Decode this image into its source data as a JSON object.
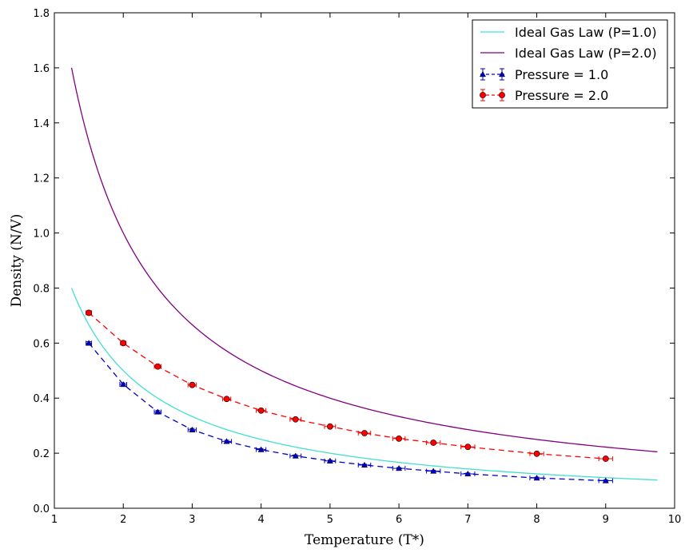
{
  "chart_data": {
    "type": "line",
    "title": "",
    "xlabel": "Temperature (T*)",
    "ylabel": "Density (N/V)",
    "xlim": [
      1,
      10
    ],
    "ylim": [
      0.0,
      1.8
    ],
    "xticks": [
      1,
      2,
      3,
      4,
      5,
      6,
      7,
      8,
      9,
      10
    ],
    "xtick_labels": [
      "1",
      "2",
      "3",
      "4",
      "5",
      "6",
      "7",
      "8",
      "9",
      "10"
    ],
    "yticks": [
      0.0,
      0.2,
      0.4,
      0.6,
      0.8,
      1.0,
      1.2,
      1.4,
      1.6,
      1.8
    ],
    "ytick_labels": [
      "0.0",
      "0.2",
      "0.4",
      "0.6",
      "0.8",
      "1.0",
      "1.2",
      "1.4",
      "1.6",
      "1.8"
    ],
    "grid": false,
    "legend_position": "top-right",
    "curves": [
      {
        "name": "Ideal Gas Law (P=1.0)",
        "color": "#40e0d0",
        "style": "solid",
        "formula": "P/T",
        "P": 1.0,
        "x_range": [
          1.25,
          9.75
        ]
      },
      {
        "name": "Ideal Gas Law (P=2.0)",
        "color": "#800080",
        "style": "solid",
        "formula": "P/T",
        "P": 2.0,
        "x_range": [
          1.25,
          9.75
        ]
      }
    ],
    "series": [
      {
        "name": "Pressure = 1.0",
        "color": "#0000cc",
        "style": "dashed",
        "marker": "triangle",
        "x": [
          1.5,
          2.0,
          2.5,
          3.0,
          3.5,
          4.0,
          4.5,
          5.0,
          5.5,
          6.0,
          6.5,
          7.0,
          8.0,
          9.0
        ],
        "y": [
          0.6,
          0.45,
          0.35,
          0.285,
          0.243,
          0.213,
          0.19,
          0.172,
          0.157,
          0.145,
          0.135,
          0.125,
          0.11,
          0.1
        ],
        "xerr": [
          0.04,
          0.05,
          0.05,
          0.06,
          0.07,
          0.07,
          0.08,
          0.08,
          0.09,
          0.09,
          0.1,
          0.1,
          0.1,
          0.1
        ],
        "yerr": [
          0.005,
          0.005,
          0.005,
          0.005,
          0.004,
          0.004,
          0.004,
          0.003,
          0.003,
          0.003,
          0.003,
          0.003,
          0.003,
          0.003
        ]
      },
      {
        "name": "Pressure = 2.0",
        "color": "#ff0000",
        "style": "dashed",
        "marker": "circle",
        "x": [
          1.5,
          2.0,
          2.5,
          3.0,
          3.5,
          4.0,
          4.5,
          5.0,
          5.5,
          6.0,
          6.5,
          7.0,
          8.0,
          9.0
        ],
        "y": [
          0.71,
          0.6,
          0.515,
          0.448,
          0.397,
          0.355,
          0.323,
          0.297,
          0.273,
          0.253,
          0.238,
          0.223,
          0.198,
          0.18
        ],
        "xerr": [
          0.04,
          0.04,
          0.05,
          0.06,
          0.06,
          0.07,
          0.08,
          0.08,
          0.09,
          0.09,
          0.1,
          0.1,
          0.1,
          0.1
        ],
        "yerr": [
          0.006,
          0.006,
          0.006,
          0.005,
          0.005,
          0.005,
          0.005,
          0.004,
          0.004,
          0.004,
          0.004,
          0.004,
          0.004,
          0.004
        ]
      }
    ]
  }
}
